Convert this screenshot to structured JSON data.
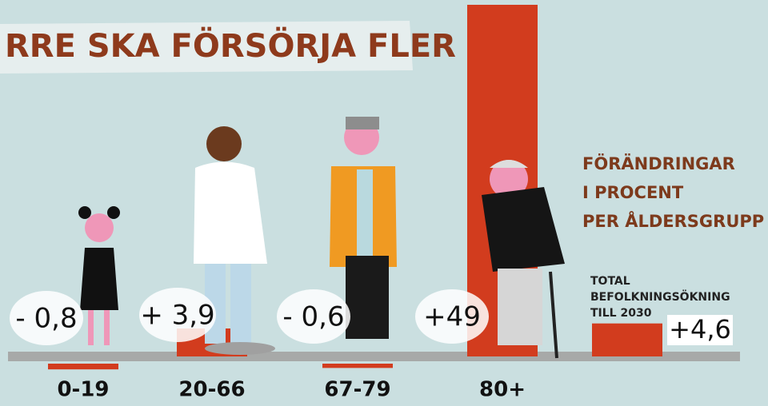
{
  "chart_data": {
    "type": "bar",
    "title": "RRE SKA FÖRSÖRJA FLER",
    "annotation": [
      "FÖRÄNDRINGAR",
      "I PROCENT",
      "PER ÅLDERSGRUPP"
    ],
    "categories": [
      "0-19",
      "20-66",
      "67-79",
      "80+"
    ],
    "values": [
      -0.8,
      3.9,
      -0.6,
      49
    ],
    "value_labels": [
      "- 0,8",
      "+ 3,9",
      "- 0,6",
      "+49"
    ],
    "color": "#d23c1e",
    "total": {
      "label": [
        "TOTAL",
        "BEFOLKNINGSÖKNING",
        "TILL 2030"
      ],
      "value": 4.6,
      "value_label": "+4,6"
    }
  }
}
